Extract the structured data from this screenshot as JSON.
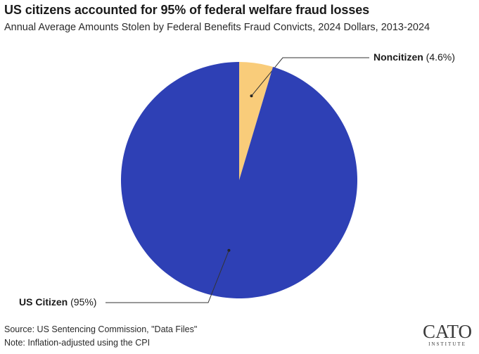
{
  "title": "US citizens accounted for 95% of federal welfare fraud losses",
  "subtitle": "Annual Average Amounts Stolen by Federal Benefits Fraud Convicts, 2024 Dollars, 2013-2024",
  "footer": {
    "source": "Source: US Sentencing Commission, \"Data Files\"",
    "note": "Note: Inflation-adjusted using the CPI"
  },
  "logo": {
    "word": "CATO",
    "sub": "INSTITUTE"
  },
  "colors": {
    "us_citizen": "#2E40B5",
    "noncitizen": "#F9CC7A",
    "leader": "#333333"
  },
  "chart_data": {
    "type": "pie",
    "title": "US citizens accounted for 95% of federal welfare fraud losses",
    "slices": [
      {
        "name": "Noncitizen",
        "value": 4.6,
        "label": "(4.6%)"
      },
      {
        "name": "US Citizen",
        "value": 95,
        "label": "(95%)"
      }
    ]
  }
}
